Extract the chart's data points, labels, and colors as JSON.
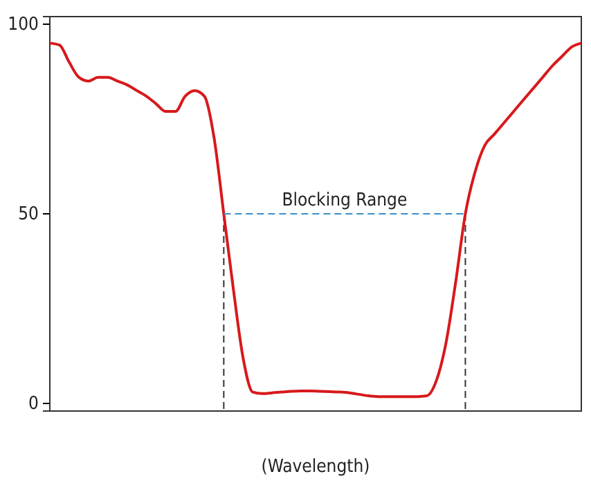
{
  "chart_data": {
    "type": "line",
    "xlabel": "(Wavelength)",
    "categories": [
      null,
      null,
      null,
      null,
      null,
      null,
      null,
      null,
      null,
      null,
      null,
      null,
      null,
      null,
      null,
      null,
      null,
      null,
      null,
      null,
      null,
      null,
      null,
      null,
      null,
      null,
      null,
      null,
      null,
      null,
      null,
      null,
      null,
      null,
      null,
      null,
      null,
      null,
      null,
      null,
      null,
      null,
      null,
      null,
      null,
      null,
      null,
      null,
      null,
      null,
      null,
      null,
      null,
      null,
      null,
      null
    ],
    "ylim": [
      -2,
      102
    ],
    "yticks": [
      0,
      50,
      100
    ],
    "tick_labels": "y",
    "grid": false,
    "series": [
      {
        "color": "#d7191c",
        "line_style": "solid",
        "values": [
          95,
          94.5,
          90,
          86,
          85,
          86,
          86,
          85,
          84,
          82.5,
          81,
          79,
          77,
          77,
          81,
          82.5,
          81,
          70,
          50,
          30,
          12,
          3,
          2.6,
          2.8,
          3,
          3.2,
          3.3,
          3.3,
          3.2,
          3.1,
          3,
          2.8,
          2.4,
          2,
          1.8,
          1.8,
          1.8,
          1.8,
          1.8,
          2,
          6,
          16,
          32,
          50,
          61,
          68,
          71,
          74,
          77,
          80,
          83,
          86,
          89,
          91.5,
          94,
          95
        ]
      },
      {
        "color": "#3a8fc9",
        "line_style": "dashed",
        "values": [
          null,
          null,
          null,
          null,
          null,
          null,
          null,
          null,
          null,
          null,
          null,
          null,
          null,
          null,
          null,
          null,
          null,
          null,
          50,
          50,
          50,
          50,
          50,
          50,
          50,
          50,
          50,
          50,
          50,
          50,
          50,
          50,
          50,
          50,
          50,
          50,
          50,
          50,
          50,
          50,
          50,
          50,
          50,
          50,
          null,
          null,
          null,
          null,
          null,
          null,
          null,
          null,
          null,
          null,
          null,
          null
        ]
      }
    ],
    "annotations": [
      {
        "text": "Blocking Range",
        "y": 50
      }
    ]
  }
}
